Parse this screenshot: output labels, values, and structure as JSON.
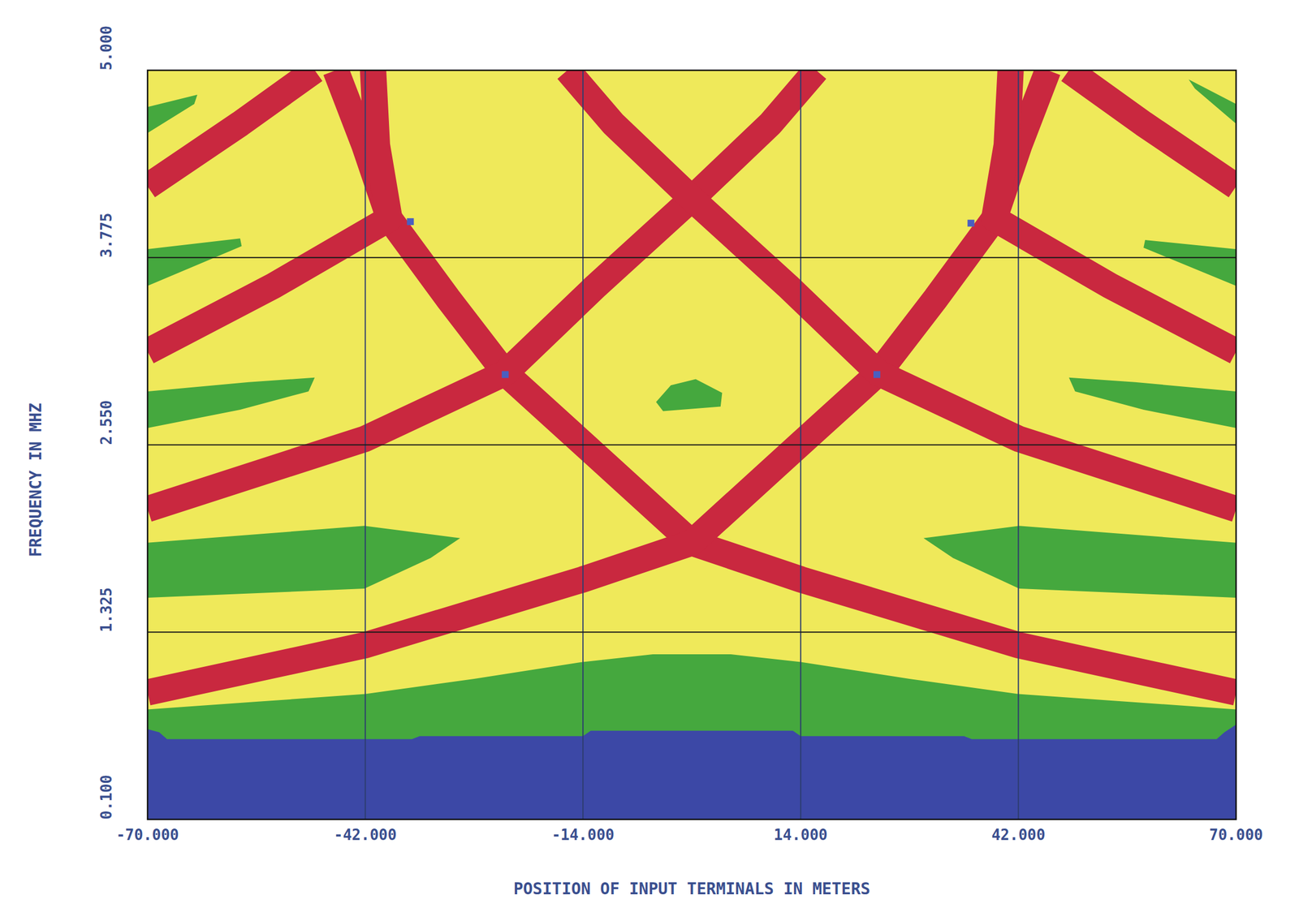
{
  "chart_data": {
    "type": "contour",
    "x_label": "POSITION OF INPUT TERMINALS IN METERS",
    "y_label": "FREQUENCY IN MHZ",
    "xlim": [
      -70,
      70
    ],
    "ylim": [
      0.1,
      5.0
    ],
    "xticks": [
      {
        "value": -70,
        "label": "-70.000"
      },
      {
        "value": -42,
        "label": "-42.000"
      },
      {
        "value": -14,
        "label": "-14.000"
      },
      {
        "value": 14,
        "label": "14.000"
      },
      {
        "value": 42,
        "label": "42.000"
      },
      {
        "value": 70,
        "label": "70.000"
      }
    ],
    "yticks": [
      {
        "value": 0.1,
        "label": "0.100"
      },
      {
        "value": 1.325,
        "label": "1.325"
      },
      {
        "value": 2.55,
        "label": "2.550"
      },
      {
        "value": 3.775,
        "label": "3.775"
      },
      {
        "value": 5.0,
        "label": "5.000"
      }
    ],
    "grid": true,
    "regions": [
      {
        "color": "#efe95a",
        "x": [
          -70,
          70,
          70,
          -70
        ],
        "y": [
          0.1,
          0.1,
          5.0,
          5.0
        ]
      },
      {
        "color": "#45a83e",
        "x": [
          -70,
          -70,
          -56,
          -42,
          -28,
          -14,
          -5,
          5,
          14,
          28,
          42,
          56,
          70,
          70
        ],
        "y": [
          0.1,
          0.82,
          0.87,
          0.92,
          1.02,
          1.13,
          1.18,
          1.18,
          1.13,
          1.02,
          0.92,
          0.87,
          0.82,
          0.1
        ]
      },
      {
        "color": "#3c48a6",
        "x": [
          -70,
          -70,
          -68.5,
          -67.5,
          -36,
          -35,
          -14,
          -13,
          13,
          14,
          35,
          36,
          67.5,
          68.5,
          70,
          70
        ],
        "y": [
          0.1,
          0.69,
          0.67,
          0.625,
          0.625,
          0.645,
          0.645,
          0.68,
          0.68,
          0.645,
          0.645,
          0.625,
          0.625,
          0.67,
          0.72,
          0.1
        ]
      },
      {
        "color": "#45a83e",
        "x": [
          -70,
          -63.6,
          -64.0,
          -70
        ],
        "y": [
          4.76,
          4.84,
          4.78,
          4.59
        ]
      },
      {
        "color": "#45a83e",
        "x": [
          70,
          63.9,
          64.7,
          70
        ],
        "y": [
          4.78,
          4.94,
          4.88,
          4.65
        ]
      },
      {
        "color": "#45a83e",
        "x": [
          -70,
          -58.1,
          -57.9,
          -70
        ],
        "y": [
          3.83,
          3.9,
          3.85,
          3.59
        ]
      },
      {
        "color": "#45a83e",
        "x": [
          70,
          58.3,
          58.1,
          70
        ],
        "y": [
          3.83,
          3.89,
          3.84,
          3.59
        ]
      },
      {
        "color": "#45a83e",
        "x": [
          -70,
          -57.0,
          -48.5,
          -49.3,
          -58.1,
          -70
        ],
        "y": [
          2.9,
          2.96,
          2.99,
          2.9,
          2.78,
          2.66
        ]
      },
      {
        "color": "#45a83e",
        "x": [
          70,
          57.0,
          48.5,
          49.3,
          58.1,
          70
        ],
        "y": [
          2.9,
          2.96,
          2.99,
          2.9,
          2.78,
          2.66
        ]
      },
      {
        "color": "#45a83e",
        "x": [
          -70,
          -42.1,
          -29.8,
          -33.6,
          -42.1,
          -70
        ],
        "y": [
          1.91,
          2.02,
          1.94,
          1.81,
          1.61,
          1.55
        ]
      },
      {
        "color": "#45a83e",
        "x": [
          70,
          42.1,
          29.8,
          33.6,
          42.1,
          70
        ],
        "y": [
          1.91,
          2.02,
          1.94,
          1.81,
          1.61,
          1.55
        ]
      },
      {
        "color": "#45a83e",
        "x": [
          -4.6,
          -2.7,
          0.5,
          3.9,
          3.7,
          -3.7
        ],
        "y": [
          2.83,
          2.94,
          2.98,
          2.89,
          2.8,
          2.77
        ]
      }
    ],
    "bands": [
      {
        "color": "#c9283f",
        "x": [
          -45.8,
          -42.1,
          -38.9,
          -31.4,
          -24.0,
          -12.3,
          0,
          14,
          42,
          70
        ],
        "y": [
          5.0,
          4.51,
          4.03,
          3.51,
          3.02,
          2.48,
          1.91,
          1.67,
          1.24,
          0.93
        ]
      },
      {
        "color": "#c9283f",
        "x": [
          45.8,
          42.1,
          38.9,
          31.4,
          24.0,
          12.3,
          0,
          -14,
          -42,
          -70
        ],
        "y": [
          5.0,
          4.51,
          4.03,
          3.51,
          3.02,
          2.48,
          1.91,
          1.67,
          1.24,
          0.93
        ]
      },
      {
        "color": "#c9283f",
        "x": [
          -70,
          -42,
          -24,
          -12.3,
          0,
          10.1,
          16.0
        ],
        "y": [
          2.13,
          2.59,
          3.02,
          3.59,
          4.16,
          4.65,
          5.0
        ]
      },
      {
        "color": "#c9283f",
        "x": [
          70,
          42,
          24,
          12.3,
          0,
          -10.1,
          -16.0
        ],
        "y": [
          2.13,
          2.59,
          3.02,
          3.59,
          4.16,
          4.65,
          5.0
        ]
      },
      {
        "color": "#c9283f",
        "x": [
          -70,
          -53.8,
          -38.9,
          -40.5,
          -41.0
        ],
        "y": [
          3.16,
          3.59,
          4.03,
          4.51,
          5.0
        ]
      },
      {
        "color": "#c9283f",
        "x": [
          70,
          53.8,
          38.9,
          40.5,
          41.0
        ],
        "y": [
          3.16,
          3.59,
          4.03,
          4.51,
          5.0
        ]
      },
      {
        "color": "#c9283f",
        "x": [
          -70,
          -58.1,
          -48.5
        ],
        "y": [
          4.24,
          4.65,
          5.0
        ]
      },
      {
        "color": "#c9283f",
        "x": [
          70,
          58.1,
          48.5
        ],
        "y": [
          4.24,
          4.65,
          5.0
        ]
      }
    ],
    "markers": {
      "color": "#4a5fc0",
      "marker": "square",
      "x": [
        -36.2,
        -24.0,
        23.8,
        35.9
      ],
      "y": [
        4.01,
        3.01,
        3.01,
        4.0
      ]
    }
  }
}
